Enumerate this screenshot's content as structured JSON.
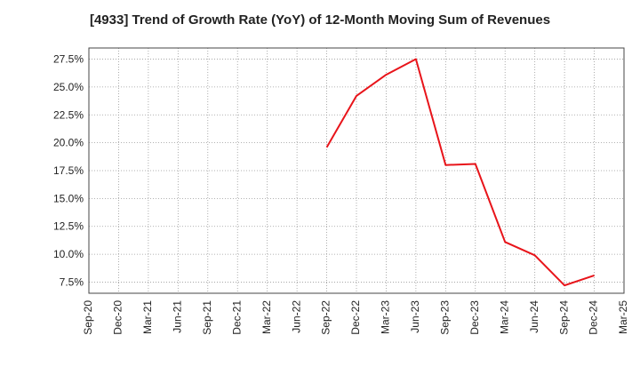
{
  "chart_data": {
    "type": "line",
    "title": "[4933]  Trend of Growth Rate (YoY) of 12-Month Moving Sum of Revenues",
    "xlabel": "",
    "ylabel": "",
    "x_ticks": [
      "Sep-20",
      "Dec-20",
      "Mar-21",
      "Jun-21",
      "Sep-21",
      "Dec-21",
      "Mar-22",
      "Jun-22",
      "Sep-22",
      "Dec-22",
      "Mar-23",
      "Jun-23",
      "Sep-23",
      "Dec-23",
      "Mar-24",
      "Jun-24",
      "Sep-24",
      "Dec-24",
      "Mar-25"
    ],
    "y_ticks": [
      "7.5%",
      "10.0%",
      "12.5%",
      "15.0%",
      "17.5%",
      "20.0%",
      "22.5%",
      "25.0%",
      "27.5%"
    ],
    "y_tick_values": [
      7.5,
      10.0,
      12.5,
      15.0,
      17.5,
      20.0,
      22.5,
      25.0,
      27.5
    ],
    "ylim": [
      6.5,
      28.5
    ],
    "grid": true,
    "line_color": "#e8141a",
    "series": [
      {
        "x": [
          "Sep-22",
          "Dec-22",
          "Mar-23",
          "Jun-23",
          "Sep-23",
          "Dec-23",
          "Mar-24",
          "Jun-24",
          "Sep-24",
          "Dec-24"
        ],
        "values": [
          19.6,
          24.2,
          26.1,
          27.5,
          18.0,
          18.1,
          11.1,
          9.9,
          7.2,
          8.1
        ]
      }
    ]
  }
}
